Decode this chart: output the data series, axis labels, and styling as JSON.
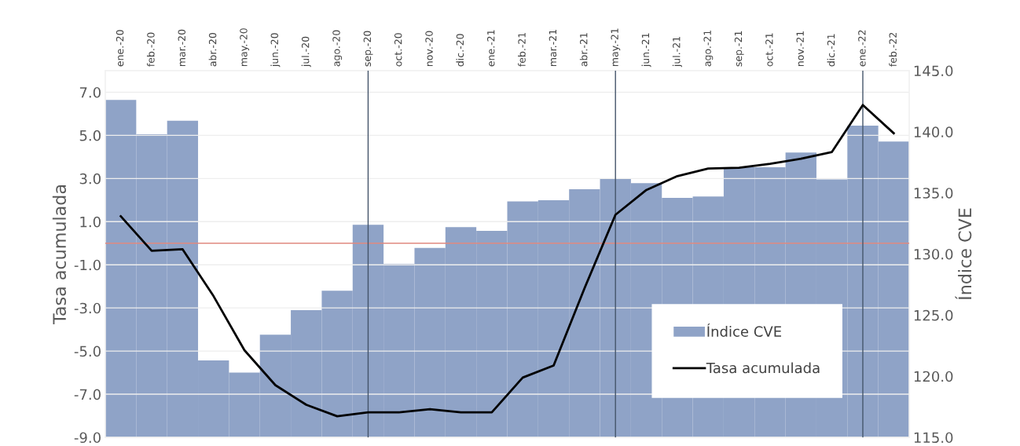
{
  "chart_data": {
    "type": "bar",
    "ylabel": "Tasa acumulada",
    "y2label": "Índice CVE",
    "categories": [
      "ene.-20",
      "feb.-20",
      "mar.-20",
      "abr.-20",
      "may.-20",
      "jun.-20",
      "jul.-20",
      "ago.-20",
      "sep.-20",
      "oct.-20",
      "nov.-20",
      "dic.-20",
      "ene.-21",
      "feb.-21",
      "mar.-21",
      "abr.-21",
      "may.-21",
      "jun.-21",
      "jul.-21",
      "ago.-21",
      "sep.-21",
      "oct.-21",
      "nov.-21",
      "dic.-21",
      "ene.-22",
      "feb.-22"
    ],
    "series": [
      {
        "name": "Índice CVE",
        "axis": "y2",
        "color": "#8fa3c7",
        "values": [
          142.6,
          139.8,
          140.9,
          121.3,
          120.3,
          123.4,
          125.4,
          127.0,
          132.4,
          129.2,
          130.5,
          132.2,
          131.9,
          134.3,
          134.4,
          135.3,
          136.2,
          135.8,
          134.6,
          134.7,
          137.1,
          137.1,
          138.3,
          136.1,
          140.5,
          139.2
        ]
      },
      {
        "name": "Tasa acumulada",
        "type": "line",
        "axis": "y",
        "color": "#000000",
        "values": [
          1.25,
          -0.35,
          -0.28,
          -2.45,
          -4.96,
          -6.58,
          -7.49,
          -8.02,
          -7.84,
          -7.84,
          -7.69,
          -7.84,
          -7.84,
          -6.23,
          -5.67,
          -2.08,
          1.32,
          2.47,
          3.11,
          3.46,
          3.5,
          3.68,
          3.92,
          4.23,
          6.41,
          5.1
        ]
      }
    ],
    "ylim": [
      -9,
      8
    ],
    "yticks": [
      {
        "value": -9,
        "label": "-9.0"
      },
      {
        "value": -7,
        "label": "-7.0"
      },
      {
        "value": -5,
        "label": "-5.0"
      },
      {
        "value": -3,
        "label": "-3.0"
      },
      {
        "value": -1,
        "label": "-1.0"
      },
      {
        "value": 1,
        "label": "1.0"
      },
      {
        "value": 3,
        "label": "3.0"
      },
      {
        "value": 5,
        "label": "5.0"
      },
      {
        "value": 7,
        "label": "7.0"
      }
    ],
    "y2lim": [
      115,
      145
    ],
    "y2ticks": [
      {
        "value": 115,
        "label": "115.0"
      },
      {
        "value": 120,
        "label": "120.0"
      },
      {
        "value": 125,
        "label": "125.0"
      },
      {
        "value": 130,
        "label": "130.0"
      },
      {
        "value": 135,
        "label": "135.0"
      },
      {
        "value": 140,
        "label": "140.0"
      },
      {
        "value": 145,
        "label": "145.0"
      }
    ],
    "ref_lines": [
      {
        "axis": "y",
        "value": 0,
        "color": "#e08a80"
      },
      {
        "axis": "x",
        "value": "sep.-20",
        "color": "#44546a"
      },
      {
        "axis": "x",
        "value": "may.-21",
        "color": "#44546a"
      },
      {
        "axis": "x",
        "value": "ene.-22",
        "color": "#44546a"
      }
    ],
    "grid": "y",
    "legend": "bottom right"
  }
}
